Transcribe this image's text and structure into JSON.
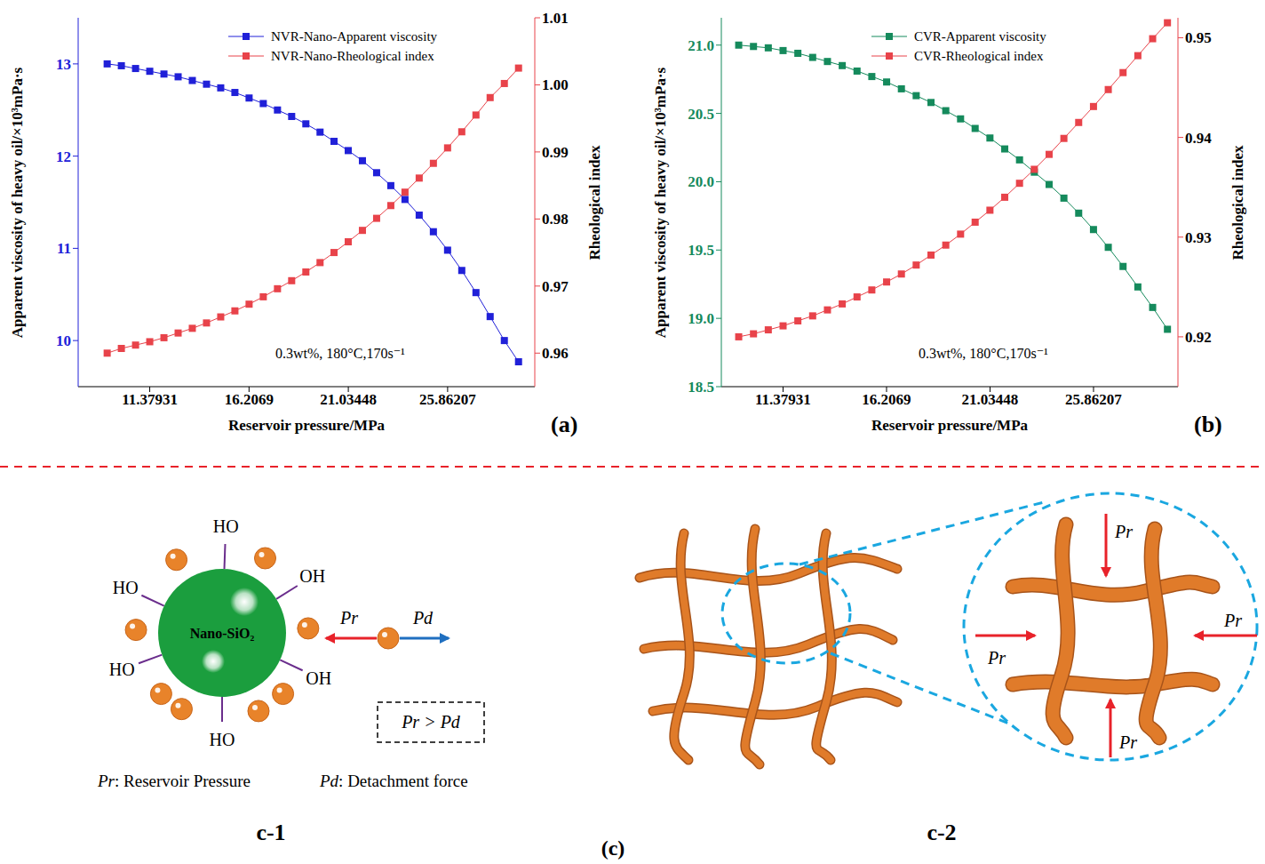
{
  "chart_data": [
    {
      "type": "line",
      "panel": "(a)",
      "x_label": "Reservoir pressure/MPa",
      "y_label": "Apparent viscosity of heavy oil/×10³mPa·s",
      "y2_label": "Rheological index",
      "annotation": "0.3wt%, 180°C,170s⁻¹",
      "legend": "upper right",
      "x": [
        9.31,
        10.0,
        10.69,
        11.38,
        12.07,
        12.76,
        13.45,
        14.14,
        14.83,
        15.52,
        16.21,
        16.9,
        17.59,
        18.28,
        18.97,
        19.66,
        20.34,
        21.03,
        21.72,
        22.41,
        23.1,
        23.79,
        24.48,
        25.17,
        25.86,
        26.55,
        27.24,
        27.93,
        28.62,
        29.31
      ],
      "xlim": [
        7.9,
        30.1
      ],
      "xticks": [
        11.37931,
        16.2069,
        21.03448,
        25.86207
      ],
      "ylim": [
        9.5,
        13.5
      ],
      "yticks": [
        10,
        11,
        12,
        13
      ],
      "y2lim": [
        0.955,
        1.01
      ],
      "y2ticks": [
        0.96,
        0.97,
        0.98,
        0.99,
        {
          "value": 1,
          "label": "1.00"
        },
        1.01
      ],
      "series": [
        {
          "name": "NVR-Nano-Apparent viscosity",
          "color": "#2020d8",
          "marker": "square",
          "values": [
            13.0,
            12.98,
            12.95,
            12.92,
            12.89,
            12.86,
            12.82,
            12.78,
            12.74,
            12.69,
            12.63,
            12.57,
            12.5,
            12.43,
            12.35,
            12.26,
            12.16,
            12.06,
            11.95,
            11.82,
            11.68,
            11.53,
            11.36,
            11.18,
            10.98,
            10.76,
            10.52,
            10.26,
            10.0,
            9.77
          ]
        },
        {
          "name": "NVR-Nano-Rheological index",
          "color": "#e8434a",
          "marker": "square",
          "axis": "y2",
          "values": [
            0.96,
            0.9607,
            0.9612,
            0.9617,
            0.9623,
            0.963,
            0.9637,
            0.9645,
            0.9654,
            0.9663,
            0.9673,
            0.9684,
            0.9696,
            0.9708,
            0.9721,
            0.9735,
            0.975,
            0.9766,
            0.9783,
            0.9801,
            0.982,
            0.984,
            0.9861,
            0.9883,
            0.9906,
            0.993,
            0.9955,
            0.9981,
            1.0002,
            1.0025
          ]
        }
      ]
    },
    {
      "type": "line",
      "panel": "(b)",
      "x_label": "Reservoir pressure/MPa",
      "y_label": "Apparent viscosity of heavy oil/×10³mPa·s",
      "y2_label": "Rheological index",
      "annotation": "0.3wt%, 180°C,170s⁻¹",
      "legend": "upper right",
      "x": [
        9.31,
        10.0,
        10.69,
        11.38,
        12.07,
        12.76,
        13.45,
        14.14,
        14.83,
        15.52,
        16.21,
        16.9,
        17.59,
        18.28,
        18.97,
        19.66,
        20.34,
        21.03,
        21.72,
        22.41,
        23.1,
        23.79,
        24.48,
        25.17,
        25.86,
        26.55,
        27.24,
        27.93,
        28.62,
        29.31
      ],
      "xlim": [
        8.5,
        29.8
      ],
      "xticks": [
        11.37931,
        16.2069,
        21.03448,
        25.86207
      ],
      "ylim": [
        18.5,
        21.2
      ],
      "yticks": [
        18.5,
        {
          "value": 19,
          "label": "19.0"
        },
        19.5,
        {
          "value": 20,
          "label": "20.0"
        },
        20.5,
        {
          "value": 21,
          "label": "21.0"
        }
      ],
      "y2lim": [
        0.915,
        0.952
      ],
      "y2ticks": [
        0.92,
        0.93,
        0.94,
        0.95
      ],
      "series": [
        {
          "name": "CVR-Apparent viscosity",
          "color": "#158a5c",
          "marker": "square",
          "values": [
            21.0,
            20.99,
            20.98,
            20.96,
            20.94,
            20.91,
            20.88,
            20.85,
            20.81,
            20.77,
            20.73,
            20.68,
            20.63,
            20.58,
            20.52,
            20.46,
            20.39,
            20.32,
            20.24,
            20.16,
            20.07,
            19.98,
            19.88,
            19.77,
            19.65,
            19.52,
            19.38,
            19.23,
            19.08,
            18.92
          ]
        },
        {
          "name": "CVR-Rheological index",
          "color": "#e8434a",
          "marker": "square",
          "axis": "y2",
          "values": [
            0.92,
            0.9203,
            0.9207,
            0.9211,
            0.9216,
            0.9221,
            0.9227,
            0.9233,
            0.924,
            0.9247,
            0.9255,
            0.9263,
            0.9272,
            0.9282,
            0.9292,
            0.9303,
            0.9315,
            0.9327,
            0.934,
            0.9354,
            0.9368,
            0.9383,
            0.9399,
            0.9415,
            0.9431,
            0.9448,
            0.9465,
            0.9482,
            0.9499,
            0.9515
          ]
        }
      ]
    }
  ],
  "diagram": {
    "panel": "(c)",
    "c1": {
      "label": "c-1",
      "particle": "Nano-SiO₂",
      "hydroxyls": [
        "HO",
        "OH",
        "HO",
        "HO",
        "OH",
        "HO"
      ],
      "pull": "Pr",
      "push": "Pd",
      "condition": "Pr > Pd",
      "key": [
        {
          "symbol": "Pr",
          "text": ": Reservoir Pressure"
        },
        {
          "symbol": "Pd",
          "text": ": Detachment force"
        }
      ]
    },
    "c2": {
      "label": "c-2",
      "forces": [
        "Pr",
        "Pr",
        "Pr",
        "Pr"
      ]
    }
  }
}
